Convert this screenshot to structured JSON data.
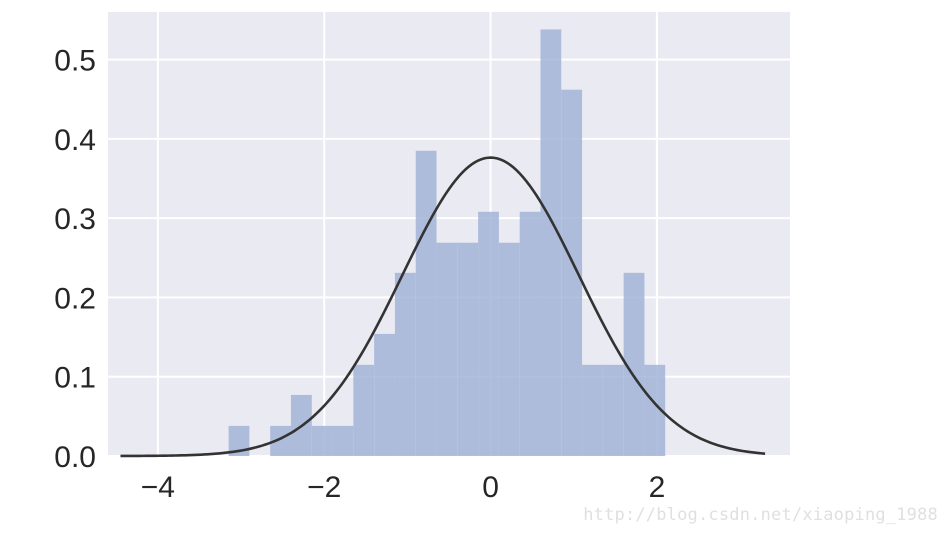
{
  "chart_data": {
    "type": "bar",
    "title": "",
    "xlabel": "",
    "ylabel": "",
    "xlim": [
      -4.6,
      3.6
    ],
    "ylim": [
      0,
      0.56
    ],
    "xticks": [
      -4,
      -2,
      0,
      2
    ],
    "xtick_labels": [
      "−4",
      "−2",
      "0",
      "2"
    ],
    "yticks": [
      0.0,
      0.1,
      0.2,
      0.3,
      0.4,
      0.5
    ],
    "ytick_labels": [
      "0.0",
      "0.1",
      "0.2",
      "0.3",
      "0.4",
      "0.5"
    ],
    "grid": true,
    "histogram": {
      "bin_edges": [
        -3.15,
        -2.9,
        -2.65,
        -2.4,
        -2.15,
        -1.9,
        -1.65,
        -1.4,
        -1.15,
        -0.9,
        -0.65,
        -0.4,
        -0.15,
        0.1,
        0.35,
        0.6,
        0.85,
        1.1,
        1.35,
        1.6,
        1.85,
        2.1
      ],
      "values": [
        0.038,
        0.0,
        0.038,
        0.077,
        0.038,
        0.038,
        0.115,
        0.154,
        0.231,
        0.385,
        0.269,
        0.269,
        0.308,
        0.269,
        0.308,
        0.538,
        0.462,
        0.115,
        0.115,
        0.231,
        0.115
      ],
      "color": "#a3b4d8"
    },
    "curve": {
      "type": "normal-pdf",
      "mean": 0.0,
      "std": 1.06,
      "x_range": [
        -4.45,
        3.3
      ],
      "color": "#333333"
    },
    "background_color": "#eaeaf2",
    "grid_color": "#ffffff"
  },
  "watermark": "http://blog.csdn.net/xiaoping_1988"
}
